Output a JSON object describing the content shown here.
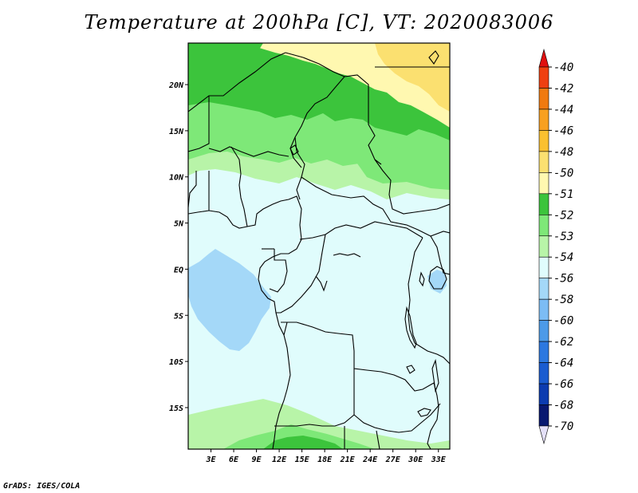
{
  "title": "Temperature at 200hPa [C], VT: 2020083006",
  "credit": "GrADS: IGES/COLA",
  "map": {
    "lon_range": [
      0,
      34.5
    ],
    "lat_range": [
      -19.5,
      24.5
    ],
    "lat_ticks": [
      {
        "value": 20,
        "label": "20N"
      },
      {
        "value": 15,
        "label": "15N"
      },
      {
        "value": 10,
        "label": "10N"
      },
      {
        "value": 5,
        "label": "5N"
      },
      {
        "value": 0,
        "label": "EQ"
      },
      {
        "value": -5,
        "label": "5S"
      },
      {
        "value": -10,
        "label": "10S"
      },
      {
        "value": -15,
        "label": "15S"
      }
    ],
    "lon_ticks": [
      {
        "value": 3,
        "label": "3E"
      },
      {
        "value": 6,
        "label": "6E"
      },
      {
        "value": 9,
        "label": "9E"
      },
      {
        "value": 12,
        "label": "12E"
      },
      {
        "value": 15,
        "label": "15E"
      },
      {
        "value": 18,
        "label": "18E"
      },
      {
        "value": 21,
        "label": "21E"
      },
      {
        "value": 24,
        "label": "24E"
      },
      {
        "value": 27,
        "label": "27E"
      },
      {
        "value": 30,
        "label": "30E"
      },
      {
        "value": 33,
        "label": "33E"
      }
    ]
  },
  "colorbar": {
    "levels": [
      {
        "label": "-40",
        "color": "#e01010"
      },
      {
        "label": "-42",
        "color": "#ef4010"
      },
      {
        "label": "-44",
        "color": "#f07a10"
      },
      {
        "label": "-46",
        "color": "#f8a020"
      },
      {
        "label": "-48",
        "color": "#fac030"
      },
      {
        "label": "-50",
        "color": "#fbe070"
      },
      {
        "label": "-51",
        "color": "#fff8b0"
      },
      {
        "label": "-52",
        "color": "#3cc43c"
      },
      {
        "label": "-53",
        "color": "#7ee878"
      },
      {
        "label": "-54",
        "color": "#b8f4a8"
      },
      {
        "label": "-56",
        "color": "#e0fcfc"
      },
      {
        "label": "-58",
        "color": "#a4d8f8"
      },
      {
        "label": "-60",
        "color": "#7cbcf4"
      },
      {
        "label": "-62",
        "color": "#4c9ae8"
      },
      {
        "label": "-64",
        "color": "#2c78e0"
      },
      {
        "label": "-66",
        "color": "#1a5cd0"
      },
      {
        "label": "-68",
        "color": "#0c3cb0"
      },
      {
        "label": "-70",
        "color": "#081870"
      }
    ],
    "under_color": "#e4e0f8"
  },
  "fields": {
    "ocean_colder": "#a4d8f8",
    "base": "#e0fcfc",
    "band_54": "#b8f4a8",
    "band_53": "#7ee878",
    "band_52": "#3cc43c",
    "band_51": "#fff8b0",
    "band_50": "#fbe070"
  }
}
